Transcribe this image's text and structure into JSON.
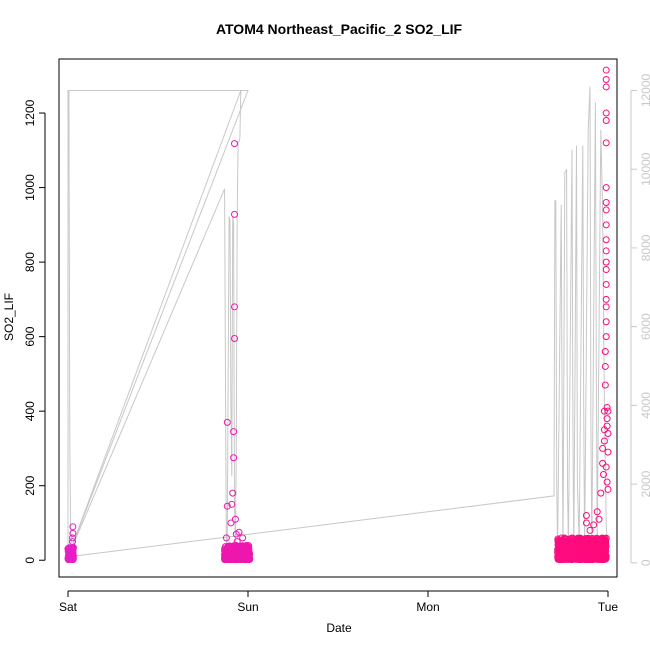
{
  "chart_data": {
    "type": "scatter",
    "title": "ATOM4 Northeast_Pacific_2 SO2_LIF",
    "xlabel": "Date",
    "ylabel": "SO2_LIF",
    "x_ticks": [
      "Sat",
      "Sun",
      "Mon",
      "Tue"
    ],
    "x_range_days": [
      -0.05,
      3.05
    ],
    "y_ticks": [
      0,
      200,
      400,
      600,
      800,
      1000,
      1200
    ],
    "ylim": [
      -45,
      1345
    ],
    "y2_ticks": [
      0,
      2000,
      4000,
      6000,
      8000,
      10000,
      12000
    ],
    "y2lim": [
      -360,
      12800
    ],
    "grid": false,
    "legend": "none",
    "colors": {
      "points_early": "#e61ec8",
      "points_late": "#ff0a78",
      "altitude_line": "#c8c8c8"
    },
    "series": [
      {
        "kind": "points",
        "axis": "left",
        "clusters": [
          {
            "x_start": 0.0,
            "x_end": 0.03,
            "y_low": 2,
            "y_high": 35,
            "n": 120,
            "outliers": [
              [
                0.025,
                50
              ],
              [
                0.025,
                60
              ],
              [
                0.027,
                72
              ],
              [
                0.027,
                90
              ]
            ]
          },
          {
            "x_start": 0.87,
            "x_end": 1.01,
            "y_low": 2,
            "y_high": 40,
            "n": 420,
            "outliers": [
              [
                0.88,
                60
              ],
              [
                0.885,
                145
              ],
              [
                0.885,
                370
              ],
              [
                0.905,
                100
              ],
              [
                0.91,
                150
              ],
              [
                0.915,
                180
              ],
              [
                0.92,
                275
              ],
              [
                0.92,
                345
              ],
              [
                0.925,
                595
              ],
              [
                0.925,
                680
              ],
              [
                0.925,
                928
              ],
              [
                0.925,
                1118
              ],
              [
                0.93,
                110
              ],
              [
                0.935,
                70
              ],
              [
                0.94,
                50
              ],
              [
                0.95,
                75
              ],
              [
                0.97,
                60
              ]
            ]
          },
          {
            "x_start": 2.72,
            "x_end": 2.99,
            "y_low": 2,
            "y_high": 60,
            "n": 900,
            "outliers": [
              [
                2.88,
                120
              ],
              [
                2.88,
                100
              ],
              [
                2.9,
                80
              ],
              [
                2.92,
                95
              ],
              [
                2.94,
                130
              ],
              [
                2.95,
                110
              ],
              [
                2.96,
                180
              ],
              [
                2.97,
                260
              ],
              [
                2.97,
                300
              ],
              [
                2.975,
                230
              ],
              [
                2.98,
                320
              ],
              [
                2.98,
                350
              ],
              [
                2.98,
                400
              ],
              [
                2.985,
                470
              ],
              [
                2.985,
                520
              ],
              [
                2.985,
                560
              ],
              [
                2.99,
                600
              ],
              [
                2.99,
                640
              ],
              [
                2.99,
                680
              ],
              [
                2.99,
                700
              ],
              [
                2.99,
                740
              ],
              [
                2.99,
                780
              ],
              [
                2.99,
                800
              ],
              [
                2.99,
                830
              ],
              [
                2.99,
                860
              ],
              [
                2.99,
                900
              ],
              [
                2.99,
                940
              ],
              [
                2.99,
                960
              ],
              [
                2.99,
                1000
              ],
              [
                2.99,
                1120
              ],
              [
                2.99,
                1180
              ],
              [
                2.99,
                1200
              ],
              [
                2.99,
                1270
              ],
              [
                2.99,
                1290
              ],
              [
                2.99,
                1315
              ],
              [
                2.995,
                410
              ],
              [
                2.995,
                380
              ],
              [
                2.995,
                360
              ],
              [
                3.0,
                290
              ],
              [
                3.0,
                340
              ],
              [
                3.0,
                400
              ],
              [
                3.0,
                190
              ],
              [
                2.995,
                210
              ],
              [
                2.99,
                250
              ]
            ]
          }
        ]
      },
      {
        "kind": "line",
        "axis": "right",
        "points": [
          [
            0.0,
            12000
          ],
          [
            0.005,
            12000
          ],
          [
            0.01,
            3000
          ],
          [
            0.015,
            800
          ],
          [
            0.02,
            600
          ],
          [
            0.0,
            150
          ],
          [
            0.0,
            12000
          ],
          [
            1.0,
            12000
          ],
          [
            0.0,
            150
          ],
          [
            0.0,
            150
          ],
          [
            0.87,
            9500
          ],
          [
            0.875,
            4500
          ],
          [
            0.88,
            300
          ],
          [
            0.885,
            600
          ],
          [
            0.89,
            5000
          ],
          [
            0.895,
            8800
          ],
          [
            0.9,
            8700
          ],
          [
            0.905,
            4000
          ],
          [
            0.91,
            2200
          ],
          [
            0.915,
            8800
          ],
          [
            0.92,
            8600
          ],
          [
            0.925,
            1500
          ],
          [
            0.93,
            400
          ],
          [
            0.935,
            3000
          ],
          [
            0.94,
            8800
          ],
          [
            0.945,
            10700
          ],
          [
            0.95,
            10700
          ],
          [
            0.955,
            10800
          ],
          [
            0.96,
            12000
          ],
          [
            0.0,
            150
          ],
          [
            2.7,
            1700
          ],
          [
            2.705,
            9200
          ],
          [
            2.71,
            9200
          ],
          [
            2.715,
            2000
          ],
          [
            2.72,
            300
          ],
          [
            2.74,
            9100
          ],
          [
            2.745,
            4000
          ],
          [
            2.75,
            300
          ],
          [
            2.76,
            9900
          ],
          [
            2.77,
            10000
          ],
          [
            2.775,
            2000
          ],
          [
            2.78,
            300
          ],
          [
            2.8,
            10500
          ],
          [
            2.805,
            3500
          ],
          [
            2.81,
            300
          ],
          [
            2.825,
            10600
          ],
          [
            2.83,
            2000
          ],
          [
            2.84,
            500
          ],
          [
            2.86,
            10600
          ],
          [
            2.865,
            4000
          ],
          [
            2.87,
            300
          ],
          [
            2.89,
            11000
          ],
          [
            2.9,
            12100
          ],
          [
            2.905,
            3500
          ],
          [
            2.91,
            300
          ],
          [
            2.93,
            11700
          ],
          [
            2.935,
            5000
          ],
          [
            2.94,
            500
          ],
          [
            2.96,
            11000
          ],
          [
            2.97,
            9000
          ],
          [
            2.98,
            4000
          ],
          [
            2.99,
            1000
          ],
          [
            3.0,
            200
          ]
        ]
      }
    ]
  }
}
